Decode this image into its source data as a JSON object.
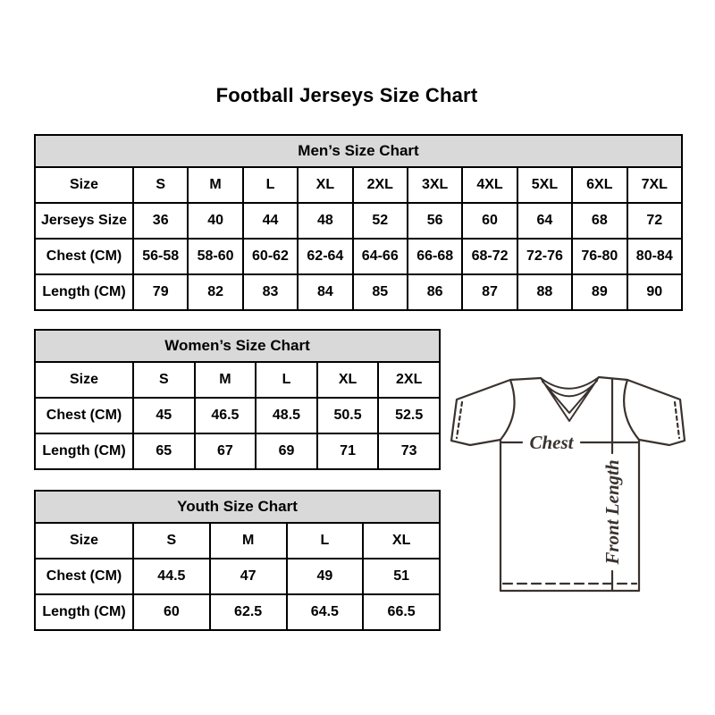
{
  "page": {
    "title": "Football Jerseys Size Chart"
  },
  "colors": {
    "header_bg": "#d9d9d9",
    "table_border": "#000000",
    "text": "#000000",
    "diagram_line": "#3a322e"
  },
  "diagram": {
    "chest_label": "Chest",
    "front_length_label": "Front Length"
  },
  "chart_data": [
    {
      "type": "table",
      "title": "Men’s Size Chart",
      "rows": [
        [
          "Size",
          "S",
          "M",
          "L",
          "XL",
          "2XL",
          "3XL",
          "4XL",
          "5XL",
          "6XL",
          "7XL"
        ],
        [
          "Jerseys Size",
          "36",
          "40",
          "44",
          "48",
          "52",
          "56",
          "60",
          "64",
          "68",
          "72"
        ],
        [
          "Chest (CM)",
          "56-58",
          "58-60",
          "60-62",
          "62-64",
          "64-66",
          "66-68",
          "68-72",
          "72-76",
          "76-80",
          "80-84"
        ],
        [
          "Length (CM)",
          "79",
          "82",
          "83",
          "84",
          "85",
          "86",
          "87",
          "88",
          "89",
          "90"
        ]
      ]
    },
    {
      "type": "table",
      "title": "Women’s Size Chart",
      "rows": [
        [
          "Size",
          "S",
          "M",
          "L",
          "XL",
          "2XL"
        ],
        [
          "Chest (CM)",
          "45",
          "46.5",
          "48.5",
          "50.5",
          "52.5"
        ],
        [
          "Length (CM)",
          "65",
          "67",
          "69",
          "71",
          "73"
        ]
      ]
    },
    {
      "type": "table",
      "title": "Youth Size Chart",
      "rows": [
        [
          "Size",
          "S",
          "M",
          "L",
          "XL"
        ],
        [
          "Chest (CM)",
          "44.5",
          "47",
          "49",
          "51"
        ],
        [
          "Length (CM)",
          "60",
          "62.5",
          "64.5",
          "66.5"
        ]
      ]
    }
  ]
}
